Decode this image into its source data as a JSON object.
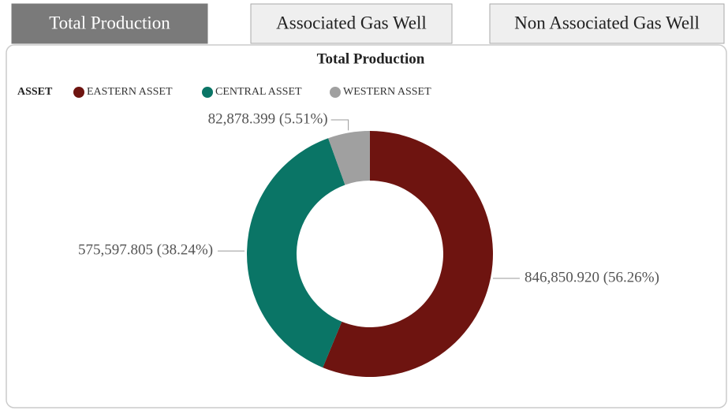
{
  "tabs": [
    {
      "label": "Total Production",
      "active": true
    },
    {
      "label": "Associated Gas Well",
      "active": false
    },
    {
      "label": "Non Associated Gas Well",
      "active": false
    }
  ],
  "chart_data": {
    "type": "donut",
    "title": "Total Production",
    "legend_title": "ASSET",
    "categories": [
      "EASTERN ASSET",
      "CENTRAL ASSET",
      "WESTERN ASSET"
    ],
    "values": [
      846850.92,
      575597.805,
      82878.399
    ],
    "value_labels": [
      "846,850.920 (56.26%)",
      "575,597.805 (38.24%)",
      "82,878.399 (5.51%)"
    ],
    "colors": [
      "#6e1410",
      "#0a7566",
      "#a0a0a0"
    ]
  }
}
